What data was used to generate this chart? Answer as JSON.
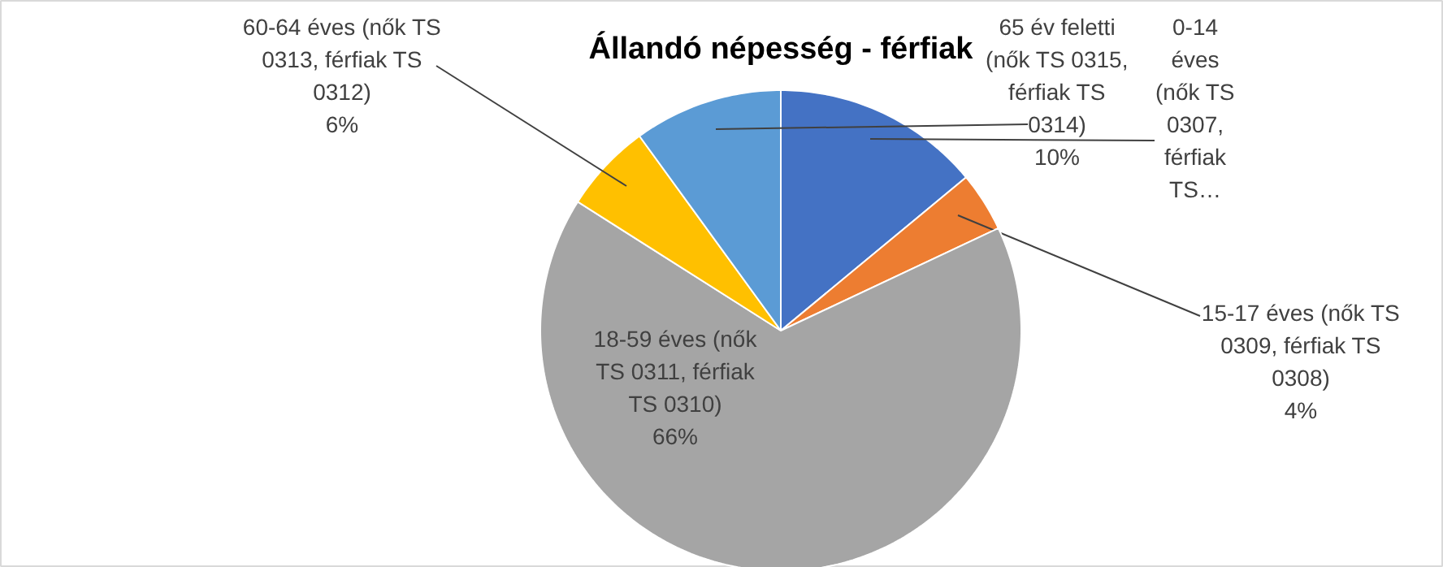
{
  "chart_data": {
    "type": "pie",
    "title": "Állandó népesség - férfiak",
    "categories": [
      "0-14 éves (nők TS 0307, férfiak TS…",
      "15-17 éves (nők TS 0309, férfiak TS 0308)",
      "18-59 éves (nők TS 0311, férfiak TS 0310)",
      "60-64 éves (nők TS 0313, férfiak TS 0312)",
      "65 év feletti (nők TS 0315, férfiak TS 0314)"
    ],
    "values": [
      14,
      4,
      66,
      6,
      10
    ],
    "colors": [
      "#4472c4",
      "#ed7d31",
      "#a5a5a5",
      "#ffc000",
      "#5b9bd5"
    ],
    "value_labels": [
      null,
      "4%",
      "66%",
      "6%",
      "10%"
    ]
  }
}
